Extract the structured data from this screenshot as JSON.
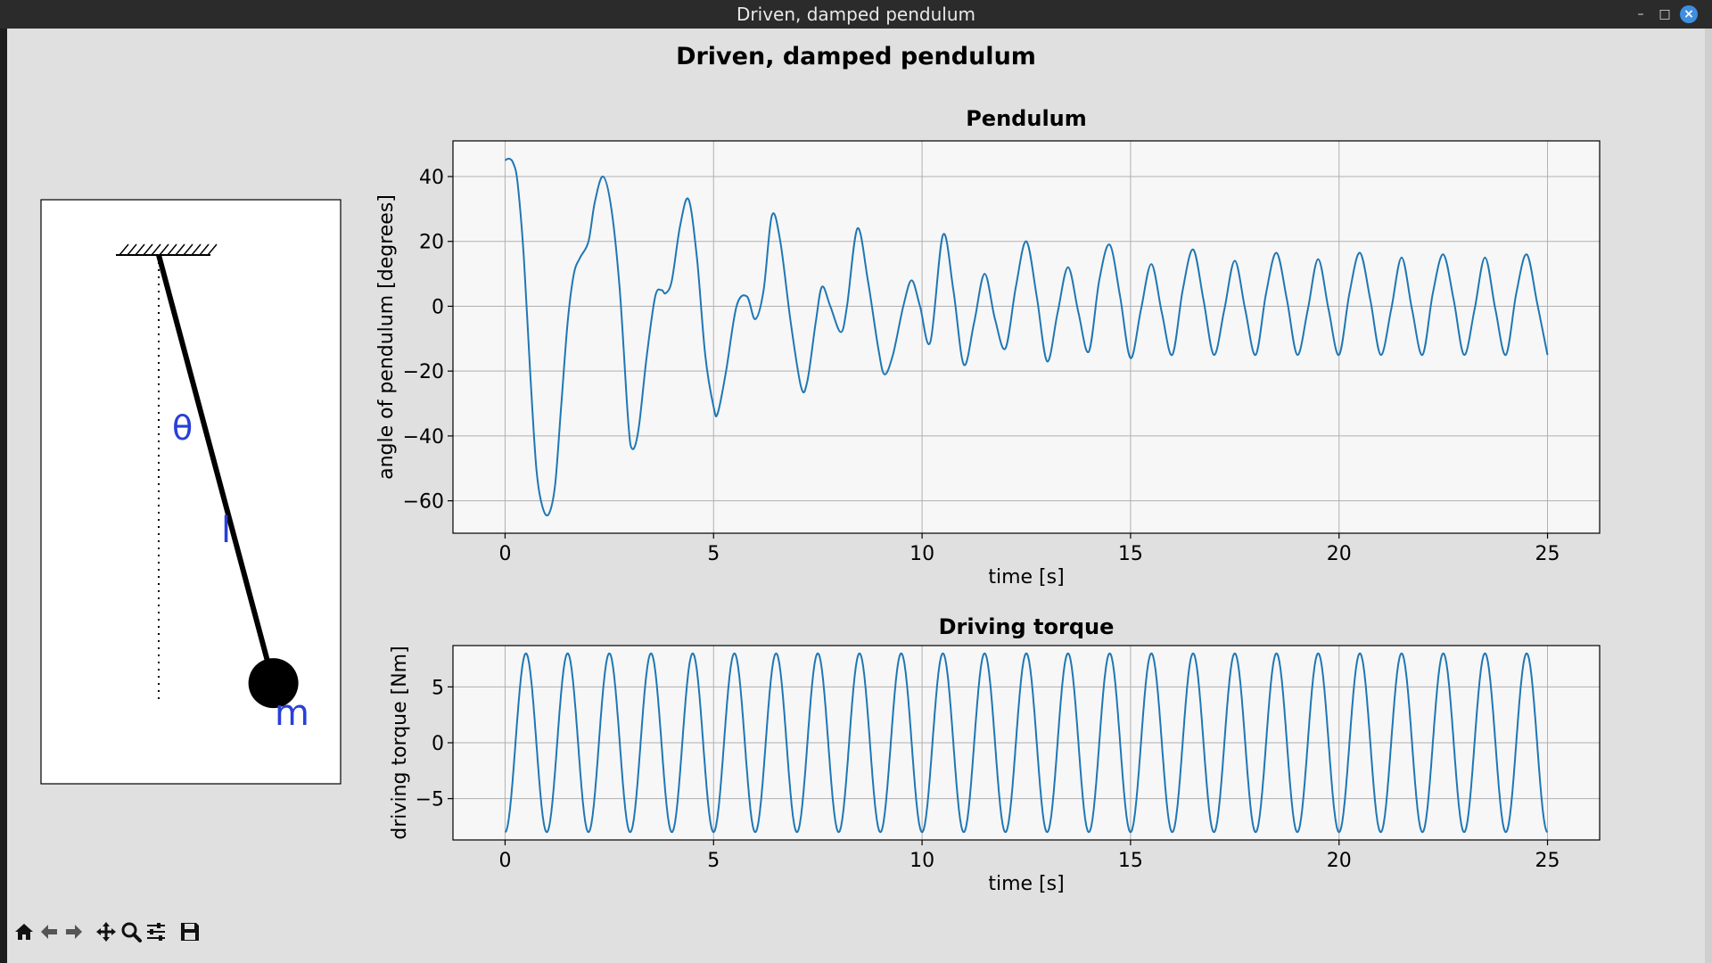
{
  "window": {
    "title": "Driven, damped pendulum",
    "controls": [
      "minimize",
      "maximize",
      "close"
    ]
  },
  "figure": {
    "suptitle": "Driven, damped pendulum"
  },
  "diagram": {
    "theta_label": "θ",
    "length_label": "l",
    "mass_label": "m",
    "angle_deg": 15
  },
  "toolbar": {
    "icons": [
      "home-icon",
      "back-arrow-icon",
      "forward-arrow-icon",
      "pan-icon",
      "zoom-icon",
      "configure-subplots-icon",
      "save-icon"
    ]
  },
  "colors": {
    "line": "#1f77b4",
    "axes_bg": "#f7f7f7",
    "figure_bg": "#e0e0e0",
    "label_blue": "#2a3fd6"
  },
  "chart_data": [
    {
      "type": "line",
      "title": "Pendulum",
      "xlabel": "time [s]",
      "ylabel": "angle of pendulum [degrees]",
      "xlim": [
        -1.25,
        26.25
      ],
      "ylim": [
        -70,
        51
      ],
      "xticks": [
        "0",
        "5",
        "10",
        "15",
        "20",
        "25"
      ],
      "yticks": [
        "40",
        "20",
        "0",
        "−20",
        "−40",
        "−60"
      ],
      "grid": true,
      "series": [
        {
          "x": [
            0,
            0.1,
            0.2,
            0.3,
            0.45,
            0.6,
            0.75,
            0.9,
            1.05,
            1.2,
            1.35,
            1.5,
            1.65,
            1.8,
            2.0,
            2.15,
            2.35,
            2.55,
            2.75,
            2.95,
            3.05,
            3.2,
            3.4,
            3.6,
            3.75,
            3.85,
            4.0,
            4.2,
            4.4,
            4.6,
            4.8,
            5.0,
            5.1,
            5.3,
            5.55,
            5.8,
            6.0,
            6.2,
            6.4,
            6.6,
            6.85,
            7.1,
            7.25,
            7.45,
            7.6,
            7.8,
            8.05,
            8.2,
            8.45,
            8.7,
            8.95,
            9.1,
            9.3,
            9.55,
            9.75,
            9.95,
            10.2,
            10.5,
            10.75,
            11.0,
            11.25,
            11.5,
            11.75,
            12.0,
            12.25,
            12.5,
            12.75,
            13.0,
            13.25,
            13.5,
            13.75,
            14.0,
            14.25,
            14.5,
            14.75,
            15.0,
            15.25,
            15.5,
            15.75,
            16.0,
            16.25,
            16.5,
            16.75,
            17.0,
            17.25,
            17.5,
            17.75,
            18.0,
            18.25,
            18.5,
            18.75,
            19.0,
            19.25,
            19.5,
            19.75,
            20.0,
            20.25,
            20.5,
            20.75,
            21.0,
            21.25,
            21.5,
            21.75,
            22.0,
            22.25,
            22.5,
            22.75,
            23.0,
            23.25,
            23.5,
            23.75,
            24.0,
            24.25,
            24.5,
            24.75,
            25.0
          ],
          "y": [
            45,
            45.5,
            44,
            38,
            15,
            -20,
            -50,
            -62,
            -64,
            -55,
            -30,
            -5,
            10,
            15,
            20,
            32,
            40,
            30,
            5,
            -35,
            -44,
            -38,
            -15,
            3,
            5,
            4,
            8,
            25,
            33,
            15,
            -15,
            -31,
            -33,
            -20,
            0,
            3,
            -4,
            5,
            28,
            20,
            -5,
            -25,
            -23,
            -5,
            6,
            0,
            -8,
            0,
            24,
            8,
            -13,
            -21,
            -15,
            0,
            8,
            0,
            -11,
            22,
            5,
            -18,
            -5,
            10,
            -4,
            -13,
            6,
            20,
            3,
            -17,
            -2,
            12,
            -2,
            -14,
            8,
            19,
            3,
            -16,
            -1,
            13,
            -2,
            -15,
            5,
            17.5,
            2,
            -15,
            -1,
            14,
            -1,
            -15,
            4,
            16.5,
            2,
            -15,
            -1,
            14.5,
            -1,
            -15,
            4,
            16.5,
            2,
            -15,
            -1,
            15,
            -1,
            -15,
            4,
            16,
            2,
            -15,
            -1,
            15,
            -1,
            -15,
            4,
            16,
            1,
            -15
          ]
        }
      ]
    },
    {
      "type": "line",
      "title": "Driving torque",
      "xlabel": "time [s]",
      "ylabel": "driving torque [Nm]",
      "xlim": [
        -1.25,
        26.25
      ],
      "ylim": [
        -8.7,
        8.7
      ],
      "xticks": [
        "0",
        "5",
        "10",
        "15",
        "20",
        "25"
      ],
      "yticks": [
        "5",
        "0",
        "−5"
      ],
      "grid": true,
      "series": [
        {
          "function": "y = -8 cos(2π t)",
          "amplitude": 8,
          "period": 1,
          "t_start": 0,
          "t_end": 25
        }
      ]
    }
  ]
}
